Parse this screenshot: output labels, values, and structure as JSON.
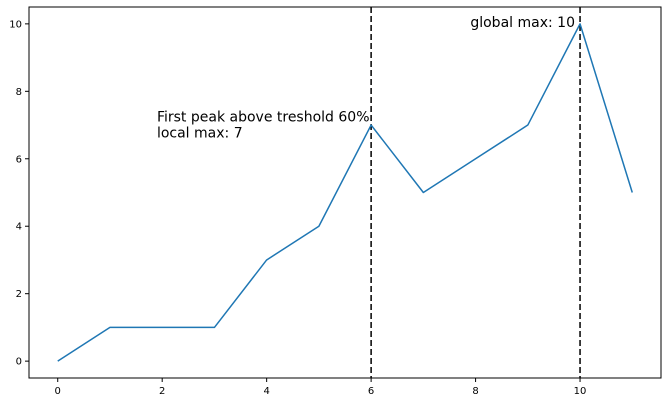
{
  "chart_data": {
    "type": "line",
    "x": [
      0,
      1,
      2,
      3,
      4,
      5,
      6,
      7,
      8,
      9,
      10,
      11
    ],
    "series": [
      {
        "values": [
          0,
          1,
          1,
          1,
          3,
          4,
          7,
          5,
          6,
          7,
          10,
          5
        ],
        "color": "#1f77b4"
      }
    ],
    "xlim": [
      -0.55,
      11.55
    ],
    "ylim": [
      -0.5,
      10.5
    ],
    "xticks": [
      0,
      2,
      4,
      6,
      8,
      10
    ],
    "yticks": [
      0,
      2,
      4,
      6,
      8,
      10
    ],
    "vlines": [
      {
        "x": 6,
        "style": "dashed",
        "color": "#000000"
      },
      {
        "x": 10,
        "style": "dashed",
        "color": "#000000"
      }
    ],
    "annotations": [
      {
        "lines": [
          "First peak above treshold 60%",
          "local max: 7"
        ],
        "x": 1.9,
        "y": 7.1
      },
      {
        "lines": [
          "global max: 10"
        ],
        "x": 7.9,
        "y": 9.9
      }
    ],
    "grid": false,
    "title": "",
    "xlabel": "",
    "ylabel": ""
  }
}
